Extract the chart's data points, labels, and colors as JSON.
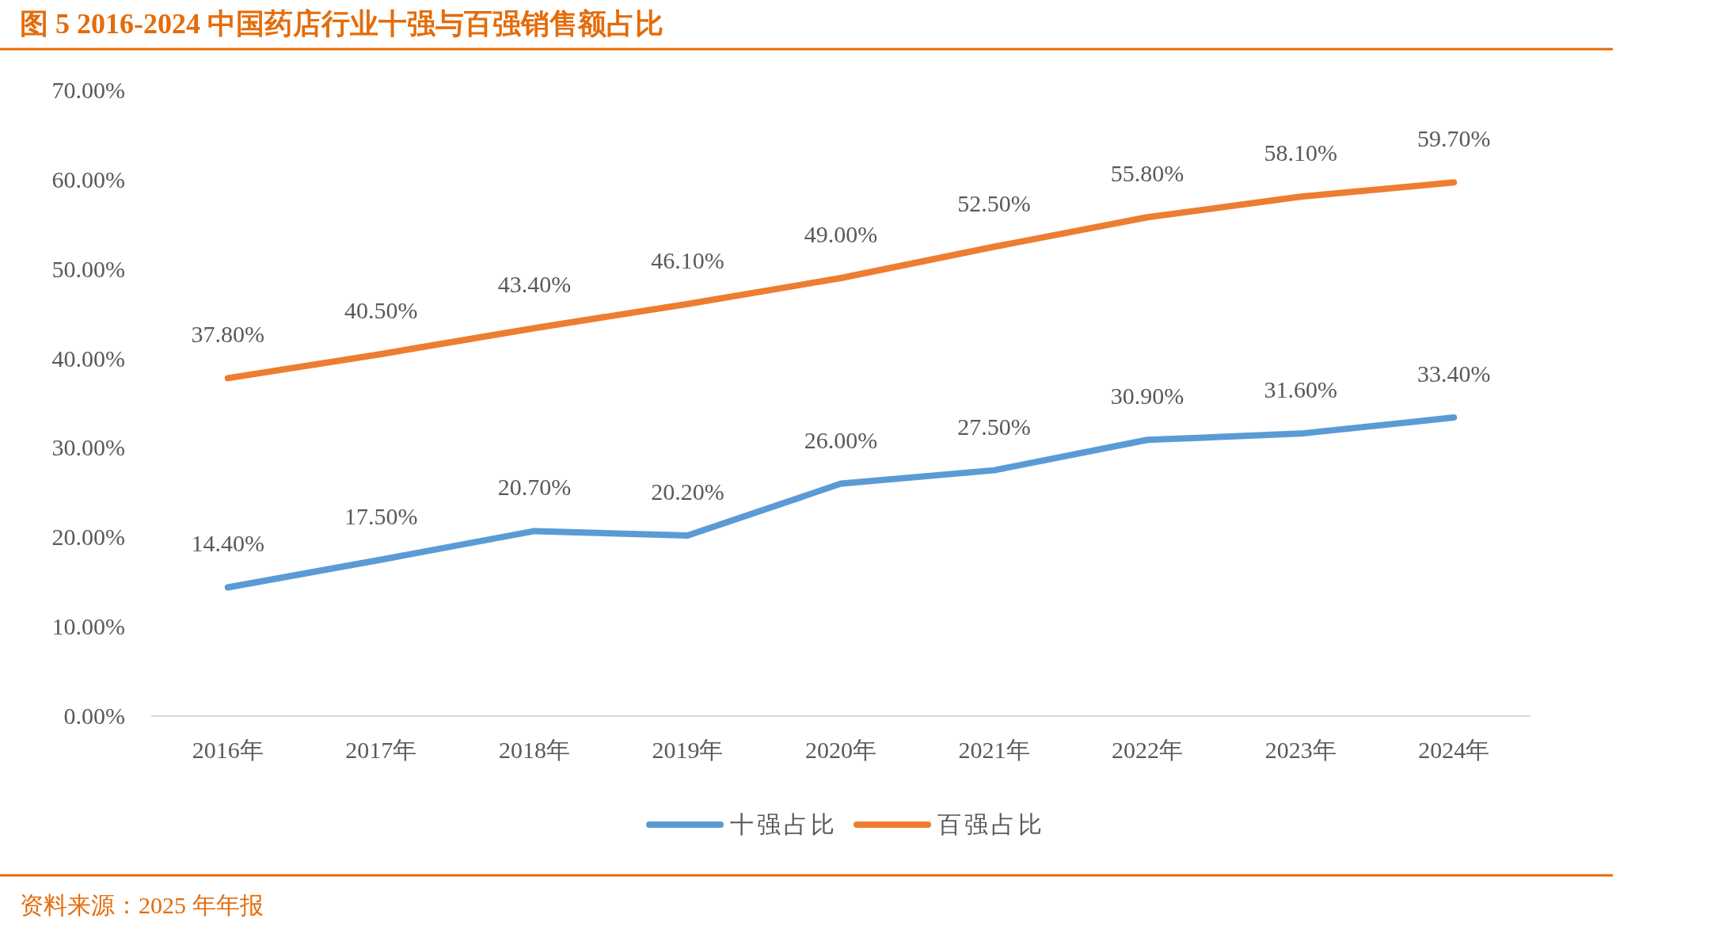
{
  "chart_data": {
    "type": "line",
    "title": "图 5 2016-2024 中国药店行业十强与百强销售额占比",
    "annotations": [
      "资料来源：2025 年年报"
    ],
    "categories": [
      "2016年",
      "2017年",
      "2018年",
      "2019年",
      "2020年",
      "2021年",
      "2022年",
      "2023年",
      "2024年"
    ],
    "series": [
      {
        "name": "十强占比",
        "color": "#5b9bd5",
        "values": [
          14.4,
          17.5,
          20.7,
          20.2,
          26.0,
          27.5,
          30.9,
          31.6,
          33.4
        ],
        "value_labels": [
          "14.40%",
          "17.50%",
          "20.70%",
          "20.20%",
          "26.00%",
          "27.50%",
          "30.90%",
          "31.60%",
          "33.40%"
        ]
      },
      {
        "name": "百强占比",
        "color": "#ed7d31",
        "values": [
          37.8,
          40.5,
          43.4,
          46.1,
          49.0,
          52.5,
          55.8,
          58.1,
          59.7
        ],
        "value_labels": [
          "37.80%",
          "40.50%",
          "43.40%",
          "46.10%",
          "49.00%",
          "52.50%",
          "55.80%",
          "58.10%",
          "59.70%"
        ]
      }
    ],
    "ylim": [
      0,
      70
    ],
    "yticks": [
      {
        "value": 0,
        "label": "0.00%"
      },
      {
        "value": 10,
        "label": "10.00%"
      },
      {
        "value": 20,
        "label": "20.00%"
      },
      {
        "value": 30,
        "label": "30.00%"
      },
      {
        "value": 40,
        "label": "40.00%"
      },
      {
        "value": 50,
        "label": "50.00%"
      },
      {
        "value": 60,
        "label": "60.00%"
      },
      {
        "value": 70,
        "label": "70.00%"
      }
    ],
    "legend": "bottom",
    "marker": "none",
    "line_style": "solid",
    "grid": false
  }
}
